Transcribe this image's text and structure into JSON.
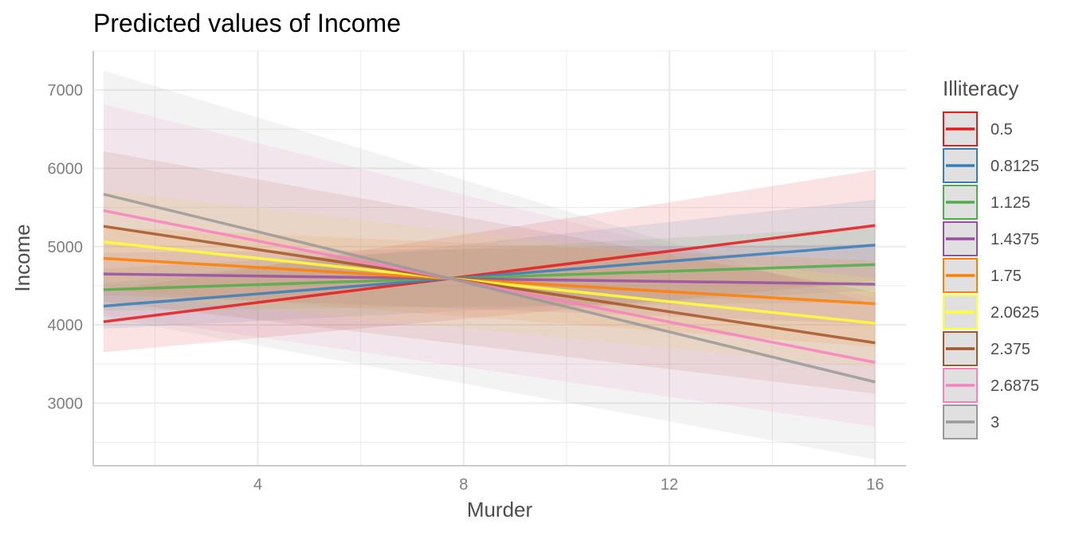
{
  "chart_data": {
    "type": "line",
    "title": "Predicted values of Income",
    "xlabel": "Murder",
    "ylabel": "Income",
    "xlim": [
      0.8,
      16.6
    ],
    "ylim": [
      2200,
      7500
    ],
    "x_ticks": [
      4,
      8,
      12,
      16
    ],
    "y_ticks": [
      3000,
      4000,
      5000,
      6000,
      7000
    ],
    "x": [
      1,
      16
    ],
    "grid": true,
    "legend": {
      "title": "Illiteracy",
      "position": "right"
    },
    "series": [
      {
        "name": "0.5",
        "color": "#e41a1c",
        "values": [
          4040,
          5270
        ],
        "ci_low": [
          3650,
          4560
        ],
        "ci_high": [
          4430,
          5980
        ]
      },
      {
        "name": "0.8125",
        "color": "#377eb8",
        "values": [
          4240,
          5020
        ],
        "ci_low": [
          3950,
          4440
        ],
        "ci_high": [
          4530,
          5600
        ]
      },
      {
        "name": "1.125",
        "color": "#4daf4a",
        "values": [
          4450,
          4770
        ],
        "ci_low": [
          4180,
          4290
        ],
        "ci_high": [
          4720,
          5250
        ]
      },
      {
        "name": "1.4375",
        "color": "#984ea3",
        "values": [
          4650,
          4520
        ],
        "ci_low": [
          4380,
          4010
        ],
        "ci_high": [
          4920,
          5030
        ]
      },
      {
        "name": "1.75",
        "color": "#ff7f00",
        "values": [
          4850,
          4270
        ],
        "ci_low": [
          4450,
          3720
        ],
        "ci_high": [
          5250,
          4820
        ]
      },
      {
        "name": "2.0625",
        "color": "#ffff33",
        "values": [
          5060,
          4020
        ],
        "ci_low": [
          4400,
          3450
        ],
        "ci_high": [
          5720,
          4590
        ]
      },
      {
        "name": "2.375",
        "color": "#a65628",
        "values": [
          5260,
          3770
        ],
        "ci_low": [
          4300,
          3120
        ],
        "ci_high": [
          6220,
          4420
        ]
      },
      {
        "name": "2.6875",
        "color": "#f781bf",
        "values": [
          5460,
          3520
        ],
        "ci_low": [
          4130,
          2700
        ],
        "ci_high": [
          6820,
          4340
        ]
      },
      {
        "name": "3",
        "color": "#999999",
        "values": [
          5670,
          3270
        ],
        "ci_low": [
          4100,
          2280
        ],
        "ci_high": [
          7250,
          4260
        ]
      }
    ]
  }
}
